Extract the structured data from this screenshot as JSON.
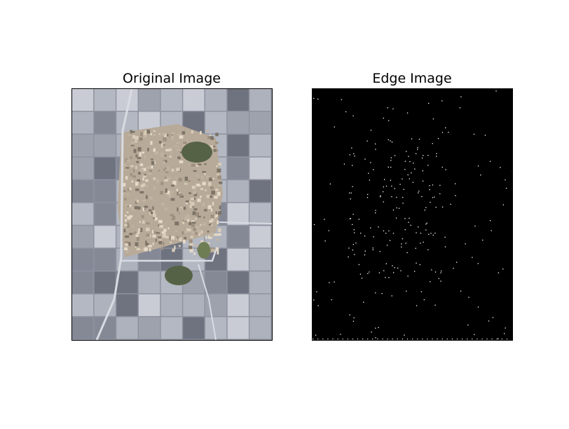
{
  "panels": [
    {
      "title": "Original Image",
      "kind": "aerial-photo"
    },
    {
      "title": "Edge Image",
      "kind": "edge-map"
    }
  ],
  "colors": {
    "background": "#ffffff",
    "frame": "#000000",
    "edge_background": "#000000",
    "edge_pixel": "#ffffff",
    "field_light": "#c9ccd4",
    "field_mid": "#9ea2ad",
    "field_dark": "#6f737f",
    "village": "#b8aa98",
    "pond": "#566246",
    "road": "#d8dbe2"
  }
}
